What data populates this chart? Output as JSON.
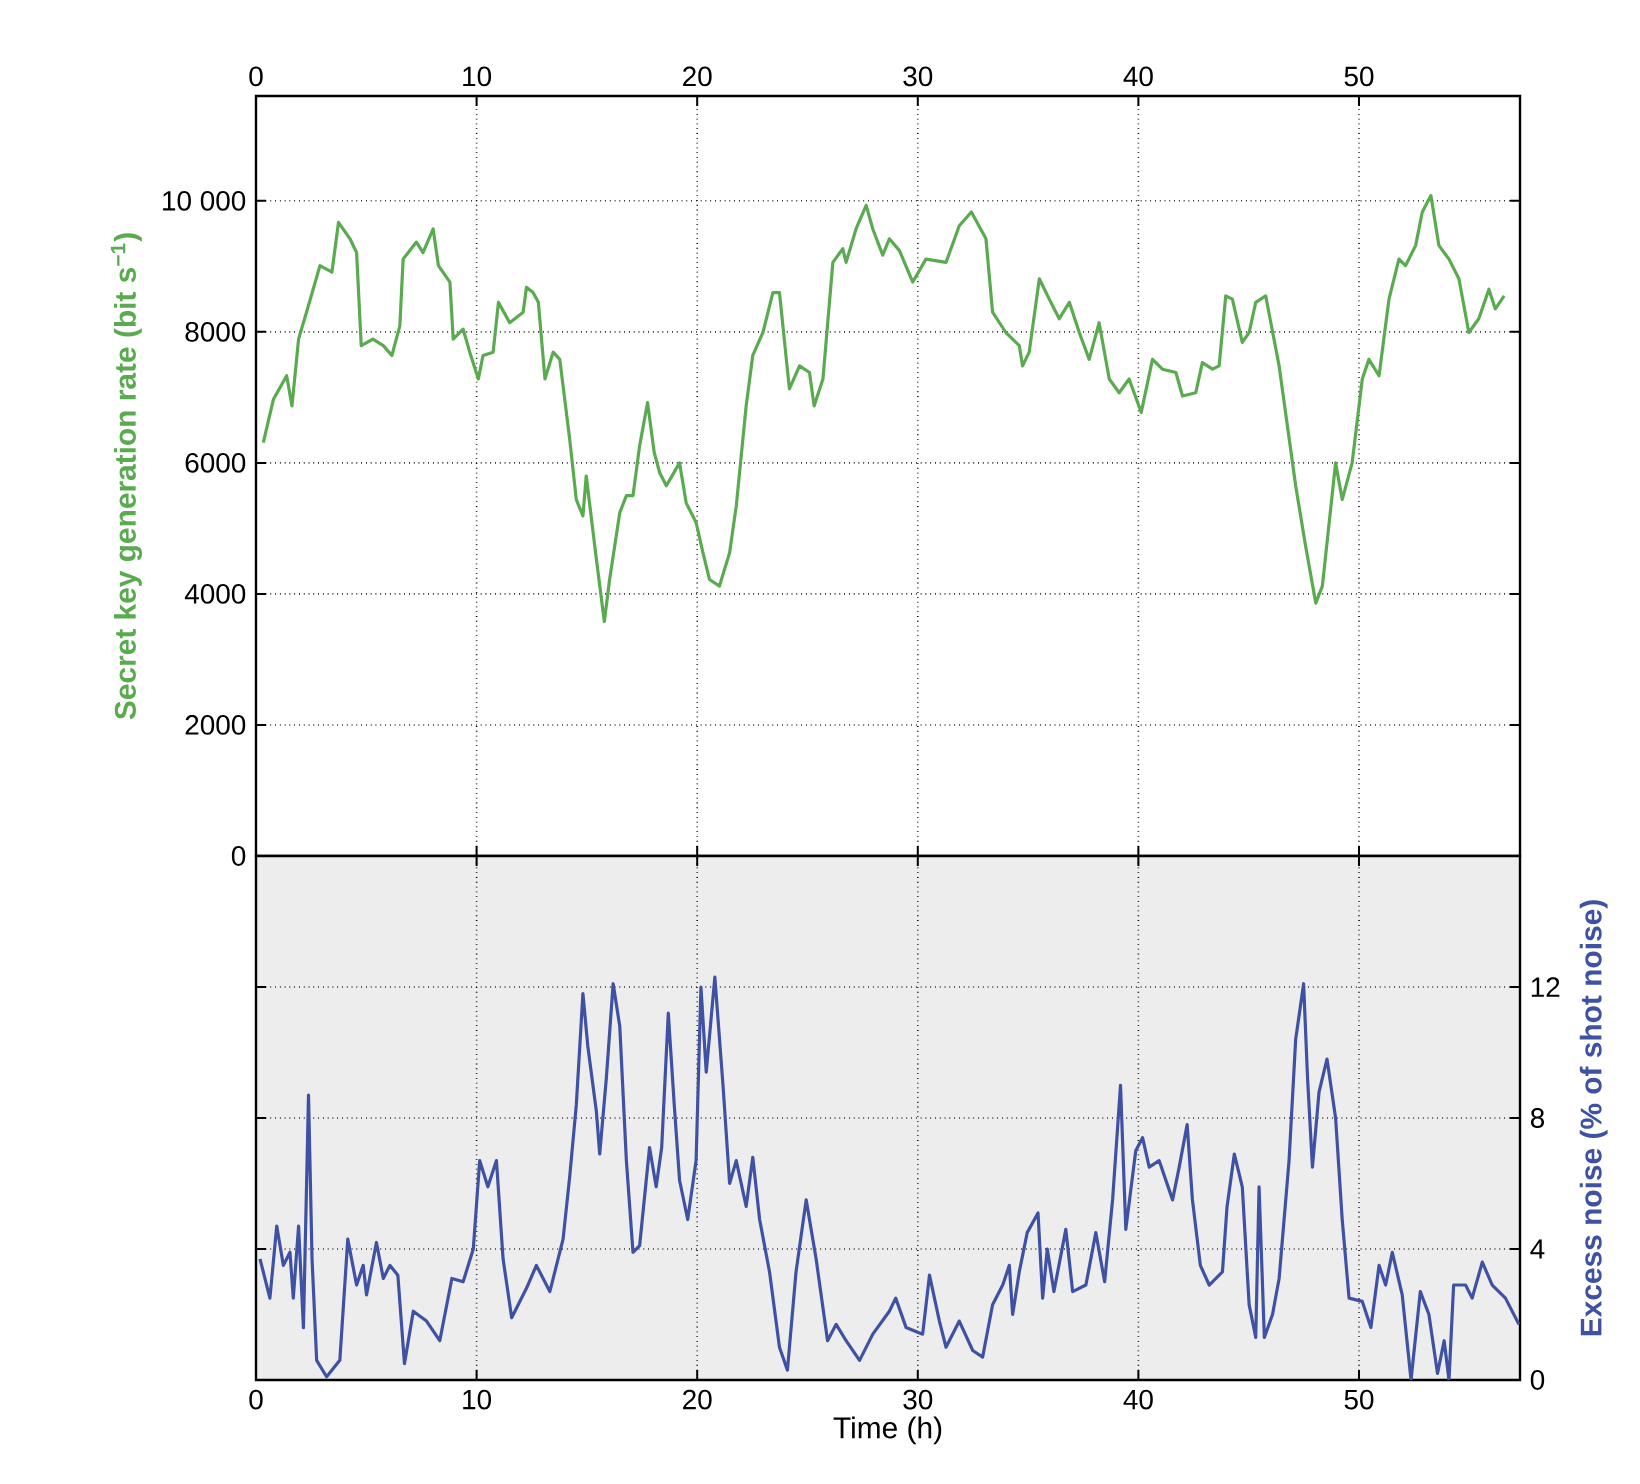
{
  "chart_data": [
    {
      "type": "line",
      "ylabel": "Secret key generation rate (bit s$^{−1}$)",
      "xlim": [
        0,
        57.3
      ],
      "xticks": [
        0,
        10,
        20,
        30,
        40,
        50
      ],
      "ylim": [
        0,
        11600
      ],
      "yticks": [
        0,
        2000,
        4000,
        6000,
        8000,
        {
          "value": 10000,
          "label": "10 000"
        }
      ],
      "grid": true,
      "series": [
        {
          "color": "#5aaa50",
          "x": [
            0.33,
            0.79,
            1.39,
            1.63,
            1.93,
            2.29,
            2.9,
            3.44,
            3.74,
            4.26,
            4.56,
            4.77,
            5.3,
            5.77,
            6.16,
            6.52,
            6.67,
            7.27,
            7.57,
            8.03,
            8.27,
            8.79,
            8.94,
            9.39,
            9.69,
            10.08,
            10.29,
            10.75,
            10.99,
            11.5,
            12.11,
            12.26,
            12.56,
            12.8,
            13.1,
            13.47,
            13.77,
            14.22,
            14.52,
            14.82,
            14.97,
            15.43,
            15.79,
            16.03,
            16.49,
            16.79,
            17.09,
            17.39,
            17.75,
            18.05,
            18.3,
            18.6,
            19.2,
            19.5,
            19.95,
            20.26,
            20.56,
            21.01,
            21.47,
            21.77,
            22.22,
            22.52,
            22.98,
            23.43,
            23.73,
            24.18,
            24.64,
            25.09,
            25.3,
            25.7,
            26.15,
            26.6,
            26.75,
            27.2,
            27.66,
            27.96,
            28.41,
            28.71,
            29.17,
            29.77,
            30.37,
            31.28,
            31.88,
            32.43,
            33.09,
            33.39,
            33.99,
            34.6,
            34.75,
            35.05,
            35.51,
            35.96,
            36.41,
            36.87,
            37.32,
            37.77,
            38.22,
            38.68,
            39.13,
            39.58,
            40.13,
            40.64,
            41.09,
            41.7,
            42.0,
            42.6,
            42.9,
            43.36,
            43.66,
            43.96,
            44.26,
            44.71,
            45.02,
            45.32,
            45.77,
            46.38,
            47.13,
            47.58,
            48.04,
            48.34,
            48.94,
            49.24,
            49.69,
            50.15,
            50.45,
            50.91,
            51.36,
            51.81,
            52.11,
            52.57,
            52.87,
            53.26,
            53.62,
            54.08,
            54.53,
            54.98,
            55.43,
            55.89,
            56.18,
            56.58
          ],
          "values": [
            6310,
            6970,
            7330,
            6870,
            7890,
            8300,
            9010,
            8910,
            9670,
            9420,
            9210,
            7790,
            7890,
            7790,
            7640,
            8090,
            9110,
            9370,
            9210,
            9570,
            9010,
            8760,
            7890,
            8040,
            7690,
            7280,
            7640,
            7690,
            8450,
            8140,
            8300,
            8680,
            8600,
            8450,
            7280,
            7690,
            7580,
            6360,
            5440,
            5190,
            5800,
            4530,
            3580,
            4220,
            5240,
            5500,
            5500,
            6260,
            6920,
            6160,
            5850,
            5650,
            6000,
            5390,
            5090,
            4630,
            4220,
            4120,
            4630,
            5340,
            6870,
            7640,
            7990,
            8600,
            8600,
            7130,
            7480,
            7380,
            6870,
            7280,
            9060,
            9270,
            9060,
            9570,
            9930,
            9570,
            9170,
            9420,
            9240,
            8760,
            9110,
            9060,
            9620,
            9830,
            9420,
            8300,
            7990,
            7790,
            7480,
            7690,
            8810,
            8500,
            8200,
            8450,
            7990,
            7580,
            8140,
            7280,
            7070,
            7280,
            6770,
            7580,
            7430,
            7380,
            7020,
            7070,
            7530,
            7430,
            7480,
            8550,
            8500,
            7840,
            7990,
            8450,
            8550,
            7480,
            5650,
            4730,
            3860,
            4120,
            6000,
            5440,
            6000,
            7280,
            7580,
            7330,
            8500,
            9110,
            9010,
            9320,
            9830,
            10080,
            9320,
            9110,
            8810,
            7990,
            8200,
            8650,
            8350,
            8550
          ]
        }
      ]
    },
    {
      "type": "line",
      "xlabel": "Time (h)",
      "y2label": "Excess noise (% of shot noise)",
      "xlim": [
        0,
        57.3
      ],
      "xticks": [
        0,
        10,
        20,
        30,
        40,
        50
      ],
      "y2lim": [
        0,
        16
      ],
      "y2ticks": [
        0,
        4,
        8,
        12
      ],
      "grid": true,
      "series": [
        {
          "color": "#3f51a3",
          "axis": "y2",
          "x": [
            0.18,
            0.63,
            0.94,
            1.24,
            1.54,
            1.69,
            1.93,
            2.15,
            2.29,
            2.38,
            2.54,
            2.75,
            3.2,
            3.8,
            4.16,
            4.56,
            4.86,
            5.01,
            5.46,
            5.77,
            6.07,
            6.43,
            6.73,
            7.13,
            7.73,
            8.33,
            8.88,
            9.39,
            9.85,
            10.14,
            10.51,
            10.9,
            11.2,
            11.59,
            12.26,
            12.71,
            13.32,
            13.92,
            14.22,
            14.52,
            14.82,
            15.04,
            15.43,
            15.58,
            15.88,
            16.19,
            16.49,
            16.79,
            17.09,
            17.39,
            17.84,
            18.14,
            18.39,
            18.69,
            18.96,
            19.2,
            19.57,
            19.95,
            20.17,
            20.41,
            20.8,
            21.17,
            21.47,
            21.77,
            22.22,
            22.52,
            22.83,
            23.28,
            23.73,
            24.09,
            24.48,
            24.94,
            25.39,
            25.91,
            26.3,
            26.75,
            27.36,
            27.96,
            28.71,
            29.0,
            29.47,
            30.22,
            30.53,
            30.98,
            31.28,
            31.88,
            32.49,
            32.94,
            33.39,
            33.85,
            34.15,
            34.3,
            34.6,
            34.96,
            35.45,
            35.66,
            35.87,
            36.17,
            36.71,
            37.02,
            37.62,
            38.07,
            38.47,
            38.83,
            39.19,
            39.43,
            39.88,
            40.19,
            40.49,
            40.94,
            41.55,
            41.85,
            42.21,
            42.45,
            42.81,
            43.21,
            43.81,
            44.02,
            44.35,
            44.71,
            45.02,
            45.32,
            45.47,
            45.71,
            46.08,
            46.38,
            46.83,
            47.13,
            47.49,
            47.67,
            47.89,
            48.19,
            48.55,
            48.94,
            49.24,
            49.55,
            50.15,
            50.54,
            50.91,
            51.21,
            51.51,
            51.96,
            52.36,
            52.78,
            53.17,
            53.56,
            53.86,
            54.08,
            54.29,
            54.83,
            55.13,
            55.59,
            56.04,
            56.64,
            57.25
          ],
          "values": [
            3.7,
            2.5,
            4.7,
            3.5,
            3.9,
            2.5,
            4.7,
            1.6,
            5.9,
            8.7,
            3.7,
            0.6,
            0.1,
            0.6,
            4.3,
            2.9,
            3.5,
            2.6,
            4.2,
            3.1,
            3.5,
            3.2,
            0.5,
            2.1,
            1.8,
            1.2,
            3.1,
            3.0,
            4.0,
            6.7,
            5.9,
            6.7,
            3.7,
            1.9,
            2.8,
            3.5,
            2.7,
            4.3,
            6.2,
            8.4,
            11.8,
            10.2,
            8.2,
            6.9,
            9.2,
            12.1,
            10.8,
            6.7,
            3.9,
            4.1,
            7.1,
            5.9,
            7.1,
            11.2,
            8.4,
            6.1,
            4.9,
            6.7,
            12.0,
            9.4,
            12.3,
            9.0,
            6.0,
            6.7,
            5.3,
            6.8,
            4.9,
            3.3,
            1.0,
            0.3,
            3.3,
            5.5,
            3.7,
            1.2,
            1.7,
            1.2,
            0.6,
            1.4,
            2.1,
            2.5,
            1.6,
            1.4,
            3.2,
            1.8,
            1.0,
            1.8,
            0.9,
            0.7,
            2.3,
            2.9,
            3.5,
            2.0,
            3.3,
            4.5,
            5.1,
            2.5,
            4.0,
            2.7,
            4.6,
            2.7,
            2.9,
            4.5,
            3.0,
            5.5,
            9.0,
            4.6,
            7.0,
            7.4,
            6.5,
            6.7,
            5.5,
            6.5,
            7.8,
            5.5,
            3.5,
            2.9,
            3.3,
            5.3,
            6.9,
            5.9,
            2.3,
            1.3,
            5.9,
            1.3,
            2.0,
            3.1,
            6.7,
            10.4,
            12.1,
            9.2,
            6.5,
            8.8,
            9.8,
            8.0,
            4.9,
            2.5,
            2.4,
            1.6,
            3.5,
            2.9,
            3.9,
            2.6,
            0,
            2.7,
            2.0,
            0.2,
            1.2,
            0,
            2.9,
            2.9,
            2.5,
            3.6,
            2.9,
            2.5,
            1.7
          ]
        }
      ]
    }
  ]
}
